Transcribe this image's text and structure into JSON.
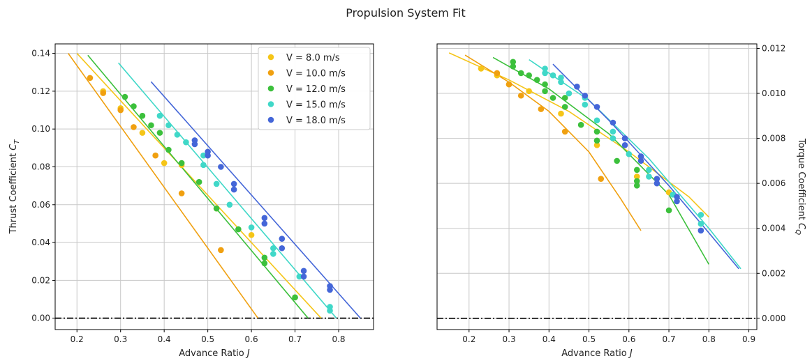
{
  "suptitle": "Propulsion System Fit",
  "colors": {
    "8.0": "#f5c518",
    "10.0": "#f0a010",
    "12.0": "#3cc03c",
    "15.0": "#40d8c8",
    "18.0": "#4466d8",
    "zero_line": "#111111",
    "grid": "#c8c8c8"
  },
  "chart_data": [
    {
      "type": "scatter",
      "xlabel": "Advance Ratio  J",
      "ylabel": "Thrust Coefficient  C_T",
      "xlim": [
        0.15,
        0.88
      ],
      "ylim": [
        -0.006,
        0.145
      ],
      "xticks": [
        "0.2",
        "0.3",
        "0.4",
        "0.5",
        "0.6",
        "0.7",
        "0.8"
      ],
      "yticks": [
        "0.00",
        "0.02",
        "0.04",
        "0.06",
        "0.08",
        "0.10",
        "0.12",
        "0.14"
      ],
      "grid": true,
      "legend_position": "top-right",
      "zero_line": {
        "y": 0,
        "style": "dash-dot"
      },
      "series": [
        {
          "name": "V = 8.0 m/s",
          "color_key": "8.0",
          "points": [
            [
              0.26,
              0.12
            ],
            [
              0.3,
              0.111
            ],
            [
              0.35,
              0.098
            ],
            [
              0.4,
              0.082
            ],
            [
              0.44,
              0.081
            ],
            [
              0.52,
              0.058
            ],
            [
              0.6,
              0.044
            ],
            [
              0.7,
              0.011
            ]
          ],
          "fit": [
            [
              0.2,
              0.14
            ],
            [
              0.76,
              0.0
            ]
          ]
        },
        {
          "name": "V = 10.0 m/s",
          "color_key": "10.0",
          "points": [
            [
              0.23,
              0.127
            ],
            [
              0.26,
              0.119
            ],
            [
              0.3,
              0.11
            ],
            [
              0.33,
              0.101
            ],
            [
              0.38,
              0.086
            ],
            [
              0.44,
              0.066
            ],
            [
              0.53,
              0.036
            ]
          ],
          "fit": [
            [
              0.18,
              0.14
            ],
            [
              0.615,
              0.0
            ]
          ]
        },
        {
          "name": "V = 12.0 m/s",
          "color_key": "12.0",
          "points": [
            [
              0.31,
              0.117
            ],
            [
              0.33,
              0.112
            ],
            [
              0.35,
              0.107
            ],
            [
              0.37,
              0.102
            ],
            [
              0.39,
              0.098
            ],
            [
              0.41,
              0.089
            ],
            [
              0.44,
              0.082
            ],
            [
              0.48,
              0.072
            ],
            [
              0.52,
              0.058
            ],
            [
              0.57,
              0.047
            ],
            [
              0.63,
              0.032
            ],
            [
              0.63,
              0.029
            ],
            [
              0.7,
              0.011
            ]
          ],
          "fit": [
            [
              0.225,
              0.139
            ],
            [
              0.73,
              0.0
            ]
          ]
        },
        {
          "name": "V = 15.0 m/s",
          "color_key": "15.0",
          "points": [
            [
              0.39,
              0.107
            ],
            [
              0.41,
              0.102
            ],
            [
              0.43,
              0.097
            ],
            [
              0.45,
              0.093
            ],
            [
              0.49,
              0.086
            ],
            [
              0.49,
              0.081
            ],
            [
              0.52,
              0.071
            ],
            [
              0.55,
              0.06
            ],
            [
              0.6,
              0.048
            ],
            [
              0.65,
              0.037
            ],
            [
              0.65,
              0.034
            ],
            [
              0.71,
              0.022
            ],
            [
              0.78,
              0.006
            ],
            [
              0.78,
              0.004
            ]
          ],
          "fit": [
            [
              0.295,
              0.135
            ],
            [
              0.795,
              0.0
            ]
          ]
        },
        {
          "name": "V = 18.0 m/s",
          "color_key": "18.0",
          "points": [
            [
              0.47,
              0.094
            ],
            [
              0.47,
              0.092
            ],
            [
              0.5,
              0.088
            ],
            [
              0.5,
              0.086
            ],
            [
              0.53,
              0.08
            ],
            [
              0.56,
              0.071
            ],
            [
              0.56,
              0.068
            ],
            [
              0.63,
              0.053
            ],
            [
              0.63,
              0.05
            ],
            [
              0.67,
              0.042
            ],
            [
              0.67,
              0.037
            ],
            [
              0.72,
              0.025
            ],
            [
              0.72,
              0.022
            ],
            [
              0.78,
              0.017
            ],
            [
              0.78,
              0.015
            ]
          ],
          "fit": [
            [
              0.37,
              0.125
            ],
            [
              0.85,
              0.0
            ]
          ]
        }
      ]
    },
    {
      "type": "scatter",
      "xlabel": "Advance Ratio  J",
      "ylabel": "Torque Coefficient  C_Q",
      "xlim": [
        0.12,
        0.92
      ],
      "ylim": [
        -0.0005,
        0.0122
      ],
      "xticks": [
        "0.2",
        "0.3",
        "0.4",
        "0.5",
        "0.6",
        "0.7",
        "0.8",
        "0.9"
      ],
      "yticks": [
        "0.000",
        "0.002",
        "0.004",
        "0.006",
        "0.008",
        "0.010",
        "0.012"
      ],
      "y_axis_side": "right",
      "grid": true,
      "zero_line": {
        "y": 0,
        "style": "dash-dot"
      },
      "series": [
        {
          "name": "V = 8.0 m/s",
          "color_key": "8.0",
          "points": [
            [
              0.23,
              0.0111
            ],
            [
              0.27,
              0.0108
            ],
            [
              0.3,
              0.0104
            ],
            [
              0.35,
              0.0101
            ],
            [
              0.43,
              0.0091
            ],
            [
              0.52,
              0.0077
            ],
            [
              0.62,
              0.0063
            ],
            [
              0.7,
              0.0056
            ]
          ],
          "fit": [
            [
              0.15,
              0.0118
            ],
            [
              0.3,
              0.0106
            ],
            [
              0.45,
              0.0092
            ],
            [
              0.6,
              0.0074
            ],
            [
              0.75,
              0.0054
            ],
            [
              0.8,
              0.0045
            ]
          ]
        },
        {
          "name": "V = 10.0 m/s",
          "color_key": "10.0",
          "points": [
            [
              0.27,
              0.0109
            ],
            [
              0.3,
              0.0104
            ],
            [
              0.33,
              0.0099
            ],
            [
              0.38,
              0.0093
            ],
            [
              0.44,
              0.0083
            ],
            [
              0.53,
              0.0062
            ]
          ],
          "fit": [
            [
              0.19,
              0.0117
            ],
            [
              0.3,
              0.0105
            ],
            [
              0.4,
              0.0092
            ],
            [
              0.5,
              0.0074
            ],
            [
              0.58,
              0.0053
            ],
            [
              0.63,
              0.0039
            ]
          ]
        },
        {
          "name": "V = 12.0 m/s",
          "color_key": "12.0",
          "points": [
            [
              0.31,
              0.0114
            ],
            [
              0.31,
              0.0112
            ],
            [
              0.33,
              0.0109
            ],
            [
              0.35,
              0.0108
            ],
            [
              0.37,
              0.0106
            ],
            [
              0.39,
              0.0104
            ],
            [
              0.39,
              0.0101
            ],
            [
              0.41,
              0.0098
            ],
            [
              0.44,
              0.0098
            ],
            [
              0.44,
              0.0094
            ],
            [
              0.48,
              0.0086
            ],
            [
              0.52,
              0.0083
            ],
            [
              0.52,
              0.0079
            ],
            [
              0.57,
              0.007
            ],
            [
              0.62,
              0.0066
            ],
            [
              0.62,
              0.0061
            ],
            [
              0.62,
              0.0059
            ],
            [
              0.7,
              0.0048
            ]
          ],
          "fit": [
            [
              0.26,
              0.0116
            ],
            [
              0.4,
              0.0102
            ],
            [
              0.55,
              0.0082
            ],
            [
              0.7,
              0.0055
            ],
            [
              0.8,
              0.0024
            ]
          ]
        },
        {
          "name": "V = 15.0 m/s",
          "color_key": "15.0",
          "points": [
            [
              0.39,
              0.0111
            ],
            [
              0.39,
              0.0109
            ],
            [
              0.41,
              0.0108
            ],
            [
              0.43,
              0.0107
            ],
            [
              0.43,
              0.0105
            ],
            [
              0.45,
              0.01
            ],
            [
              0.49,
              0.0098
            ],
            [
              0.49,
              0.0095
            ],
            [
              0.52,
              0.0088
            ],
            [
              0.56,
              0.0083
            ],
            [
              0.56,
              0.008
            ],
            [
              0.6,
              0.0073
            ],
            [
              0.65,
              0.0066
            ],
            [
              0.65,
              0.0063
            ],
            [
              0.71,
              0.0055
            ],
            [
              0.78,
              0.0046
            ],
            [
              0.78,
              0.0042
            ]
          ],
          "fit": [
            [
              0.35,
              0.0115
            ],
            [
              0.5,
              0.0097
            ],
            [
              0.65,
              0.0071
            ],
            [
              0.8,
              0.004
            ],
            [
              0.88,
              0.0022
            ]
          ]
        },
        {
          "name": "V = 18.0 m/s",
          "color_key": "18.0",
          "points": [
            [
              0.47,
              0.0103
            ],
            [
              0.49,
              0.0099
            ],
            [
              0.52,
              0.0094
            ],
            [
              0.56,
              0.0087
            ],
            [
              0.59,
              0.008
            ],
            [
              0.59,
              0.0077
            ],
            [
              0.63,
              0.0072
            ],
            [
              0.63,
              0.007
            ],
            [
              0.67,
              0.0062
            ],
            [
              0.67,
              0.006
            ],
            [
              0.72,
              0.0054
            ],
            [
              0.72,
              0.0052
            ],
            [
              0.78,
              0.0039
            ]
          ],
          "fit": [
            [
              0.41,
              0.0113
            ],
            [
              0.55,
              0.0088
            ],
            [
              0.7,
              0.0059
            ],
            [
              0.8,
              0.0038
            ],
            [
              0.875,
              0.0022
            ]
          ]
        }
      ]
    }
  ]
}
